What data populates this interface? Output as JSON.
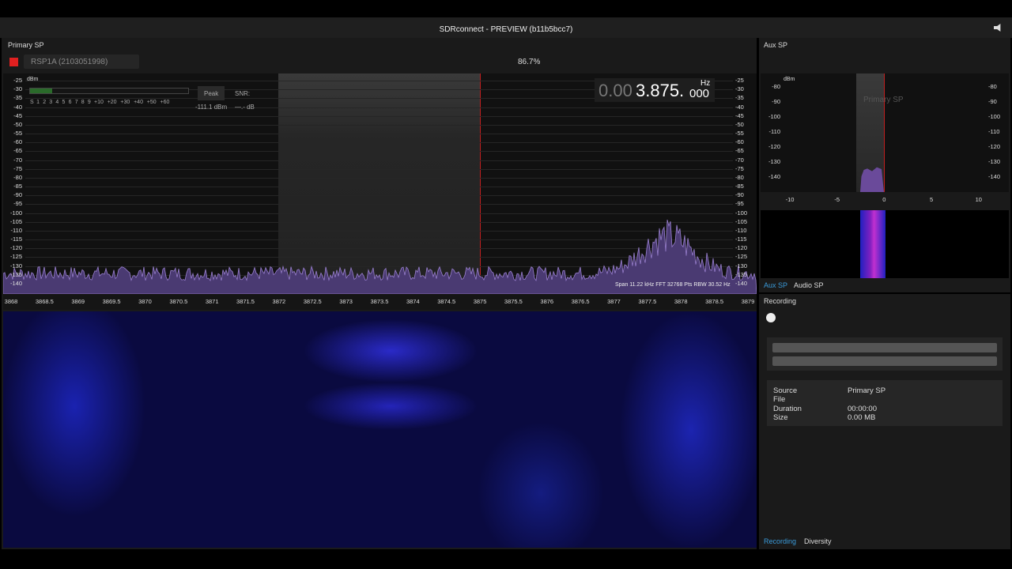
{
  "window": {
    "title": "SDRconnect - PREVIEW (b11b5bcc7)"
  },
  "primary": {
    "label": "Primary SP",
    "device": "RSP1A (2103051998)",
    "zoom": "86.7%",
    "meter": {
      "unit": "dBm",
      "scale": [
        "S",
        "1",
        "2",
        "3",
        "4",
        "5",
        "6",
        "7",
        "8",
        "9",
        "+10",
        "+20",
        "+30",
        "+40",
        "+50",
        "+60"
      ],
      "peak": "Peak",
      "peak_value": "-111.1 dBm",
      "snr": "SNR:",
      "snr_value": "—.- dB"
    },
    "frequency": {
      "dim": "0.00",
      "main": "3.875.",
      "small": "000",
      "unit": "Hz"
    },
    "db_ticks": [
      "-25",
      "-30",
      "-35",
      "-40",
      "-45",
      "-50",
      "-55",
      "-60",
      "-65",
      "-70",
      "-75",
      "-80",
      "-85",
      "-90",
      "-95",
      "-100",
      "-105",
      "-110",
      "-115",
      "-120",
      "-125",
      "-130",
      "-135",
      "-140"
    ],
    "info": "Span 11.22 kHz FFT 32768 Pts  RBW 30.52 Hz",
    "freq_ticks": [
      "3868",
      "3868.5",
      "3869",
      "3869.5",
      "3870",
      "3870.5",
      "3871",
      "3871.5",
      "3872",
      "3872.5",
      "3873",
      "3873.5",
      "3874",
      "3874.5",
      "3875",
      "3875.5",
      "3876",
      "3876.5",
      "3877",
      "3877.5",
      "3878",
      "3878.5",
      "3879"
    ]
  },
  "aux": {
    "label": "Aux SP",
    "unit": "dBm",
    "db_ticks": [
      "-80",
      "-90",
      "-100",
      "-110",
      "-120",
      "-130",
      "-140"
    ],
    "x_ticks": [
      "-10",
      "-5",
      "0",
      "5",
      "10"
    ],
    "watermark": "Primary SP",
    "tabs": [
      "Aux SP",
      "Audio SP"
    ]
  },
  "recording": {
    "label": "Recording",
    "fields": [
      [
        "Source",
        "Primary SP"
      ],
      [
        "File",
        ""
      ],
      [
        "Duration",
        "00:00:00"
      ],
      [
        "Size",
        "0.00 MB"
      ]
    ],
    "tabs": [
      "Recording",
      "Diversity"
    ]
  }
}
